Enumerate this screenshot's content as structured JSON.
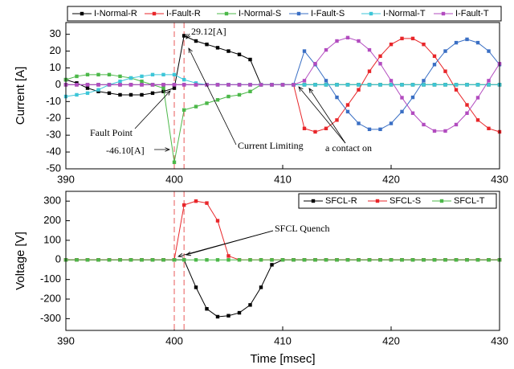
{
  "chart_data": [
    {
      "type": "line",
      "ylabel": "Current [A]",
      "x": [
        390,
        391,
        392,
        393,
        394,
        395,
        396,
        397,
        398,
        399,
        400,
        400.9,
        402,
        403,
        404,
        405,
        406,
        407,
        408,
        409,
        410,
        411,
        412,
        413,
        414,
        415,
        416,
        417,
        418,
        419,
        420,
        421,
        422,
        423,
        424,
        425,
        426,
        427,
        428,
        429,
        430
      ],
      "xlim": [
        390,
        430
      ],
      "xticks": [
        390,
        400,
        410,
        420,
        430
      ],
      "ylim": [
        -50,
        37
      ],
      "yticks": [
        -50,
        -40,
        -30,
        -20,
        -10,
        0,
        10,
        20,
        30
      ],
      "vlines": [
        400,
        400.9
      ],
      "legend": "top",
      "series": [
        {
          "name": "I-Normal-R",
          "color": "#000000",
          "values": [
            3,
            1,
            -2,
            -4,
            -5,
            -6,
            -6,
            -6,
            -5,
            -4,
            -2,
            29.12,
            26,
            24,
            22,
            20,
            18,
            15,
            0,
            0,
            0,
            0,
            0,
            0,
            0,
            0,
            0,
            0,
            0,
            0,
            0,
            0,
            0,
            0,
            0,
            0,
            0,
            0,
            0,
            0,
            0
          ]
        },
        {
          "name": "I-Fault-R",
          "color": "#e8262a",
          "values": [
            0,
            0,
            0,
            0,
            0,
            0,
            0,
            0,
            0,
            0,
            0,
            0,
            0,
            0,
            0,
            0,
            0,
            0,
            0,
            0,
            0,
            0,
            -26,
            -28,
            -26,
            -21,
            -12,
            -3,
            8,
            17,
            24,
            27.5,
            27.5,
            24,
            17,
            8,
            -3,
            -12,
            -21,
            -26,
            -28
          ]
        },
        {
          "name": "I-Normal-S",
          "color": "#4cb849",
          "values": [
            3,
            5,
            6,
            6,
            6,
            5,
            4,
            2,
            0,
            -2,
            -46.1,
            -15,
            -13,
            -11,
            -9,
            -7,
            -6,
            -4,
            0,
            0,
            0,
            0,
            0,
            0,
            0,
            0,
            0,
            0,
            0,
            0,
            0,
            0,
            0,
            0,
            0,
            0,
            0,
            0,
            0,
            0,
            0
          ]
        },
        {
          "name": "I-Fault-S",
          "color": "#3a6fc4",
          "values": [
            0,
            0,
            0,
            0,
            0,
            0,
            0,
            0,
            0,
            0,
            0,
            0,
            0,
            0,
            0,
            0,
            0,
            0,
            0,
            0,
            0,
            0,
            20,
            12,
            2.4,
            -7.5,
            -16,
            -23,
            -26.5,
            -26.5,
            -23,
            -16,
            -7.5,
            2.4,
            12,
            20,
            25,
            27,
            25,
            20,
            12
          ]
        },
        {
          "name": "I-Normal-T",
          "color": "#3dc6d8",
          "values": [
            -7,
            -6,
            -5,
            -3,
            0,
            2,
            4,
            5,
            6,
            6,
            6,
            3,
            1,
            0,
            0,
            0,
            0,
            0,
            0,
            0,
            0,
            0,
            0,
            0,
            0,
            0,
            0,
            0,
            0,
            0,
            0,
            0,
            0,
            0,
            0,
            0,
            0,
            0,
            0,
            0,
            0
          ]
        },
        {
          "name": "I-Fault-T",
          "color": "#b24bbf",
          "values": [
            0,
            0,
            0,
            0,
            0,
            0,
            0,
            0,
            0,
            0,
            0,
            0,
            0,
            0,
            0,
            0,
            0,
            0,
            0,
            0,
            0,
            0,
            2.4,
            12.5,
            20.7,
            26,
            28,
            26,
            20.7,
            12.5,
            2.4,
            -7.7,
            -16.9,
            -23.7,
            -27.5,
            -27.5,
            -23.7,
            -16.9,
            -7.7,
            2.4,
            12.5
          ]
        }
      ],
      "annotations": [
        "29.12[A]",
        "Fault Point",
        "-46.10[A]",
        "Current Limiting",
        "a contact on"
      ]
    },
    {
      "type": "line",
      "xlabel": "Time [msec]",
      "ylabel": "Voltage [V]",
      "x": [
        390,
        391,
        392,
        393,
        394,
        395,
        396,
        397,
        398,
        399,
        400,
        400.9,
        402,
        403,
        404,
        405,
        406,
        407,
        408,
        409,
        410,
        411,
        412,
        413,
        414,
        415,
        416,
        417,
        418,
        419,
        420,
        421,
        422,
        423,
        424,
        425,
        426,
        427,
        428,
        429,
        430
      ],
      "xlim": [
        390,
        430
      ],
      "xticks": [
        390,
        400,
        410,
        420,
        430
      ],
      "ylim": [
        -360,
        350
      ],
      "yticks": [
        -300,
        -200,
        -100,
        0,
        100,
        200,
        300
      ],
      "vlines": [
        400,
        400.9
      ],
      "legend": "upper right",
      "series": [
        {
          "name": "SFCL-R",
          "color": "#000000",
          "values": [
            0,
            0,
            0,
            0,
            0,
            0,
            0,
            0,
            0,
            0,
            0,
            0,
            -140,
            -250,
            -290,
            -285,
            -270,
            -230,
            -140,
            -25,
            0,
            0,
            0,
            0,
            0,
            0,
            0,
            0,
            0,
            0,
            0,
            0,
            0,
            0,
            0,
            0,
            0,
            0,
            0,
            0,
            0
          ]
        },
        {
          "name": "SFCL-S",
          "color": "#e8262a",
          "values": [
            0,
            0,
            0,
            0,
            0,
            0,
            0,
            0,
            0,
            0,
            0,
            280,
            300,
            290,
            200,
            20,
            0,
            0,
            0,
            0,
            0,
            0,
            0,
            0,
            0,
            0,
            0,
            0,
            0,
            0,
            0,
            0,
            0,
            0,
            0,
            0,
            0,
            0,
            0,
            0,
            0
          ]
        },
        {
          "name": "SFCL-T",
          "color": "#4cb849",
          "values": [
            0,
            0,
            0,
            0,
            0,
            0,
            0,
            0,
            0,
            0,
            0,
            0,
            0,
            0,
            0,
            0,
            0,
            0,
            0,
            0,
            0,
            0,
            0,
            0,
            0,
            0,
            0,
            0,
            0,
            0,
            0,
            0,
            0,
            0,
            0,
            0,
            0,
            0,
            0,
            0,
            0
          ]
        }
      ],
      "annotations": [
        "SFCL Quench"
      ]
    }
  ]
}
